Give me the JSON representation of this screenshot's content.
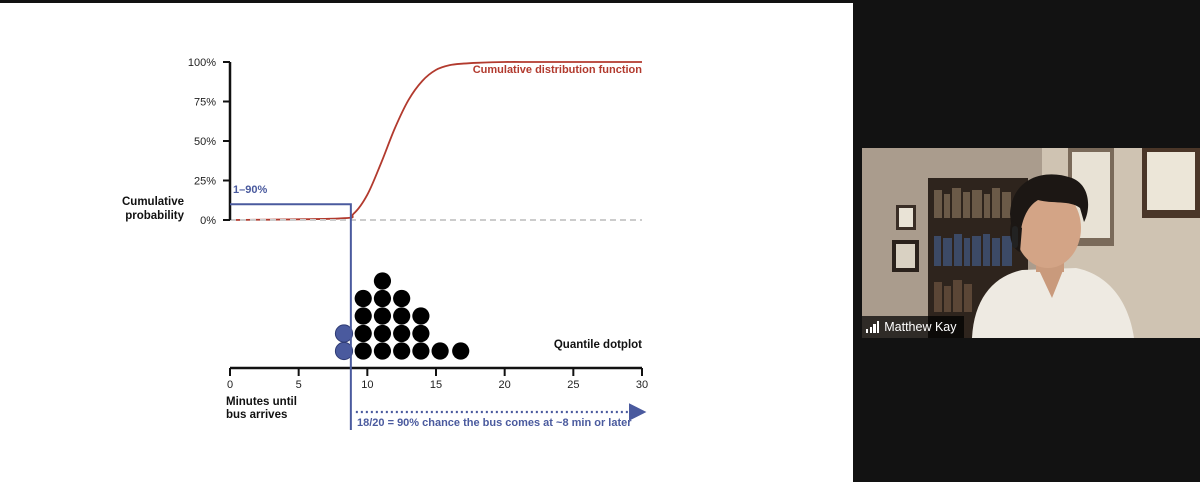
{
  "slide": {
    "y_axis": {
      "title_line1": "Cumulative",
      "title_line2": "probability",
      "ticks": [
        "0%",
        "25%",
        "50%",
        "75%",
        "100%"
      ]
    },
    "x_axis": {
      "title_line1": "Minutes until",
      "title_line2": "bus arrives",
      "ticks": [
        "0",
        "5",
        "10",
        "15",
        "20",
        "25",
        "30"
      ]
    },
    "cdf_label": "Cumulative distribution function",
    "threshold_label": "1–90%",
    "dotplot_label": "Quantile dotplot",
    "annotation": "18/20 = 90% chance the bus comes at ~8 min or later",
    "colors": {
      "cdf": "#b23a2e",
      "highlight": "#4a5a9e",
      "dots": "#000000",
      "zero_line": "#cccccc"
    }
  },
  "chart_data": {
    "type": "scatter",
    "title": "",
    "xlabel": "Minutes until bus arrives",
    "ylabel": "Cumulative probability",
    "xlim": [
      0,
      30
    ],
    "ylim": [
      0,
      1
    ],
    "x_ticks": [
      0,
      5,
      10,
      15,
      20,
      25,
      30
    ],
    "y_ticks": [
      "0%",
      "25%",
      "50%",
      "75%",
      "100%"
    ],
    "cdf": {
      "name": "Cumulative distribution function",
      "x": [
        0,
        8,
        9,
        10,
        11,
        12,
        13,
        14,
        15,
        16,
        17,
        18,
        20,
        22,
        25,
        30
      ],
      "y": [
        0,
        0.01,
        0.04,
        0.16,
        0.36,
        0.58,
        0.76,
        0.88,
        0.95,
        0.98,
        0.99,
        0.995,
        1,
        1,
        1,
        1
      ]
    },
    "dotplot": {
      "name": "Quantile dotplot",
      "columns": [
        {
          "x": 8.3,
          "count": 2,
          "highlighted": true
        },
        {
          "x": 9.7,
          "count": 4,
          "highlighted": false
        },
        {
          "x": 11.1,
          "count": 5,
          "highlighted": false
        },
        {
          "x": 12.5,
          "count": 4,
          "highlighted": false
        },
        {
          "x": 13.9,
          "count": 3,
          "highlighted": false
        },
        {
          "x": 15.3,
          "count": 1,
          "highlighted": false
        },
        {
          "x": 16.8,
          "count": 1,
          "highlighted": false
        }
      ]
    },
    "threshold": {
      "x": 8.8,
      "y": 0.1
    }
  },
  "participant": {
    "name": "Matthew Kay",
    "signal_icon": "signal-bars-icon"
  }
}
